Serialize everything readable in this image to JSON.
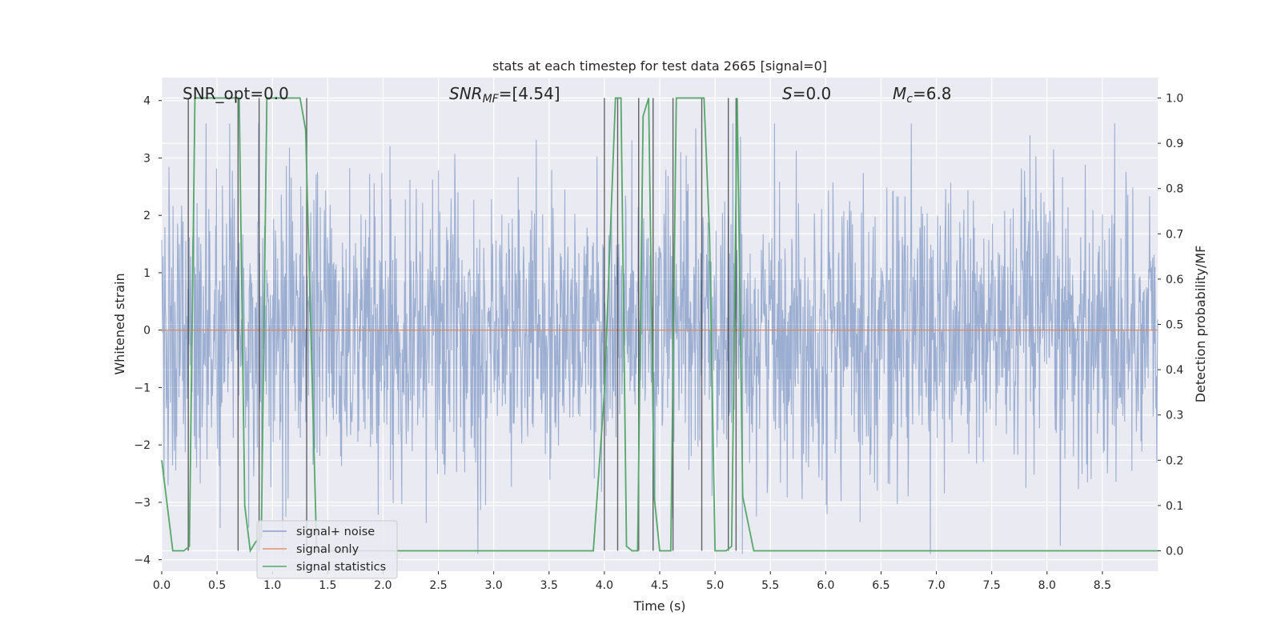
{
  "chart_data": {
    "type": "line",
    "title": "stats at each timestep for test data 2665 [signal=0]",
    "xlabel": "Time (s)",
    "ylabel": "Whitened strain",
    "y2label": "Detection probability/MF",
    "xlim": [
      0.0,
      9.0
    ],
    "ylim": [
      -4.2,
      4.4
    ],
    "y2lim": [
      -0.045,
      1.045
    ],
    "x_ticks": [
      "0.0",
      "0.5",
      "1.0",
      "1.5",
      "2.0",
      "2.5",
      "3.0",
      "3.5",
      "4.0",
      "4.5",
      "5.0",
      "5.5",
      "6.0",
      "6.5",
      "7.0",
      "7.5",
      "8.0",
      "8.5"
    ],
    "y_ticks": [
      "4",
      "3",
      "2",
      "1",
      "0",
      "−1",
      "−2",
      "−3",
      "−4"
    ],
    "y2_ticks": [
      "1.0",
      "0.9",
      "0.8",
      "0.7",
      "0.6",
      "0.5",
      "0.4",
      "0.3",
      "0.2",
      "0.1",
      "0.0"
    ],
    "annotations": {
      "snr_opt": "SNR_opt=0.0",
      "snr_mf_base": "SNR",
      "snr_mf_sub": "MF",
      "snr_mf_value": "=[4.54]",
      "s_base": "S",
      "s_value": "=0.0",
      "mc_base": "M",
      "mc_sub": "c",
      "mc_value": "=6.8"
    },
    "legend": {
      "position": "lower-left",
      "entries": [
        {
          "label": "signal+ noise",
          "color": "#4c72b0"
        },
        {
          "label": "signal only",
          "color": "#dd8452"
        },
        {
          "label": "signal statistics",
          "color": "#55a868"
        }
      ]
    },
    "series": [
      {
        "name": "signal+ noise",
        "kind": "noise",
        "amplitude_range": [
          -3.9,
          3.6
        ],
        "n_samples": 2200,
        "color": "#4c72b0"
      },
      {
        "name": "signal only",
        "kind": "line",
        "x": [
          0.0,
          9.0
        ],
        "y": [
          0.0,
          0.0
        ],
        "color": "#dd8452"
      },
      {
        "name": "signal statistics",
        "axis": "right",
        "color": "#55a868",
        "x": [
          0.0,
          0.05,
          0.1,
          0.2,
          0.25,
          0.3,
          0.7,
          0.75,
          0.8,
          0.85,
          0.9,
          0.95,
          1.0,
          1.1,
          1.25,
          1.3,
          1.4,
          1.5,
          2.0,
          3.0,
          3.9,
          4.0,
          4.1,
          4.15,
          4.2,
          4.25,
          4.3,
          4.35,
          4.4,
          4.45,
          4.5,
          4.55,
          4.6,
          4.65,
          4.75,
          4.9,
          4.95,
          5.0,
          5.1,
          5.15,
          5.2,
          5.25,
          5.35,
          5.5,
          6.0,
          7.0,
          8.0,
          9.0
        ],
        "y": [
          0.2,
          0.1,
          0.0,
          0.0,
          0.01,
          1.0,
          1.0,
          0.1,
          0.0,
          0.02,
          0.03,
          1.0,
          1.0,
          1.0,
          1.0,
          0.93,
          0.0,
          0.0,
          0.0,
          0.0,
          0.0,
          0.35,
          1.0,
          1.0,
          0.01,
          0.0,
          0.0,
          0.96,
          1.0,
          0.12,
          0.0,
          0.0,
          0.0,
          1.0,
          1.0,
          1.0,
          0.7,
          0.0,
          0.0,
          0.01,
          1.0,
          0.12,
          0.0,
          0.0,
          0.0,
          0.0,
          0.0,
          0.0
        ]
      }
    ],
    "vlines": [
      0.24,
      0.69,
      0.88,
      1.31,
      4.0,
      4.12,
      4.31,
      4.44,
      4.62,
      4.88,
      5.12,
      5.19
    ]
  }
}
